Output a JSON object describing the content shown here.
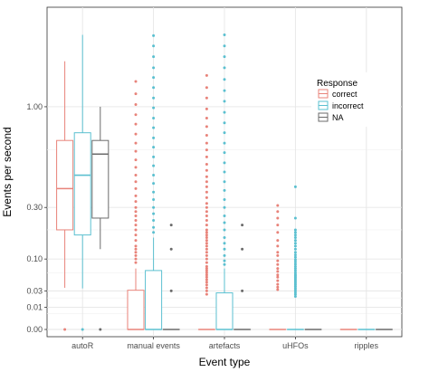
{
  "chart_data": {
    "type": "boxplot",
    "xlabel": "Event type",
    "ylabel": "Events per second",
    "y_scale": "pseudo-log (square-root style)",
    "y_ticks": [
      0.0,
      0.01,
      0.03,
      0.1,
      0.3,
      1.0
    ],
    "y_tick_labels": [
      "0.00",
      "0.01",
      "0.03",
      "0.10",
      "0.30",
      "1.00"
    ],
    "ylim": [
      0,
      2.0
    ],
    "grid": true,
    "categories": [
      "autoR",
      "manual events",
      "artefacts",
      "uHFOs",
      "ripples"
    ],
    "legend": {
      "title": "Response",
      "placement": "right",
      "entries": [
        {
          "key": "correct",
          "label": "correct",
          "color": "#E8837A"
        },
        {
          "key": "incorrect",
          "label": "incorrect",
          "color": "#5BC0D0"
        },
        {
          "key": "NA",
          "label": "NA",
          "color": "#6B6B6B"
        }
      ]
    },
    "series": [
      {
        "name": "correct",
        "color": "#E8837A",
        "boxes": [
          {
            "category": "autoR",
            "lower_whisker": 0.035,
            "q1": 0.2,
            "median": 0.4,
            "q3": 0.72,
            "upper_whisker": 1.45,
            "outliers": [
              0.0
            ]
          },
          {
            "category": "manual events",
            "lower_whisker": 0.0,
            "q1": 0.0,
            "median": 0.0,
            "q3": 0.031,
            "upper_whisker": 0.075,
            "outliers": [
              0.09,
              0.1,
              0.11,
              0.12,
              0.13,
              0.14,
              0.16,
              0.18,
              0.2,
              0.22,
              0.24,
              0.26,
              0.28,
              0.3,
              0.33,
              0.36,
              0.4,
              0.44,
              0.48,
              0.53,
              0.58,
              0.64,
              0.7,
              0.77,
              0.85,
              0.93,
              1.02,
              1.12,
              1.24
            ]
          },
          {
            "category": "artefacts",
            "lower_whisker": 0.0,
            "q1": 0.0,
            "median": 0.0,
            "q3": 0.0,
            "upper_whisker": 0.0,
            "outliers": [
              0.025,
              0.03,
              0.035,
              0.04,
              0.045,
              0.05,
              0.055,
              0.06,
              0.065,
              0.07,
              0.075,
              0.08,
              0.09,
              0.1,
              0.11,
              0.12,
              0.13,
              0.14,
              0.15,
              0.16,
              0.17,
              0.18,
              0.19,
              0.2,
              0.22,
              0.24,
              0.26,
              0.28,
              0.3,
              0.32,
              0.35,
              0.38,
              0.41,
              0.44,
              0.47,
              0.51,
              0.55,
              0.6,
              0.65,
              0.7,
              0.76,
              0.83,
              0.9,
              0.98,
              1.08,
              1.18,
              1.3
            ]
          },
          {
            "category": "uHFOs",
            "lower_whisker": 0.0,
            "q1": 0.0,
            "median": 0.0,
            "q3": 0.0,
            "upper_whisker": 0.0,
            "outliers": [
              0.032,
              0.036,
              0.041,
              0.048,
              0.055,
              0.06,
              0.068,
              0.075,
              0.085,
              0.095,
              0.11,
              0.12,
              0.14,
              0.16,
              0.19,
              0.22,
              0.25,
              0.28,
              0.31
            ]
          },
          {
            "category": "ripples",
            "lower_whisker": 0.0,
            "q1": 0.0,
            "median": 0.0,
            "q3": 0.0,
            "upper_whisker": 0.0,
            "outliers": []
          }
        ]
      },
      {
        "name": "incorrect",
        "color": "#5BC0D0",
        "boxes": [
          {
            "category": "autoR",
            "lower_whisker": 0.034,
            "q1": 0.18,
            "median": 0.48,
            "q3": 0.78,
            "upper_whisker": 1.75,
            "outliers": [
              0.0
            ]
          },
          {
            "category": "manual events",
            "lower_whisker": 0.0,
            "q1": 0.0,
            "median": 0.0,
            "q3": 0.07,
            "upper_whisker": 0.17,
            "outliers": [
              0.19,
              0.21,
              0.24,
              0.27,
              0.3,
              0.34,
              0.38,
              0.43,
              0.48,
              0.54,
              0.6,
              0.67,
              0.74,
              0.82,
              0.9,
              0.99,
              1.08,
              1.18,
              1.28,
              1.38,
              1.5,
              1.62,
              1.74
            ]
          },
          {
            "category": "artefacts",
            "lower_whisker": 0.0,
            "q1": 0.0,
            "median": 0.0,
            "q3": 0.027,
            "upper_whisker": 0.075,
            "outliers": [
              0.085,
              0.095,
              0.11,
              0.13,
              0.15,
              0.17,
              0.2,
              0.23,
              0.26,
              0.3,
              0.34,
              0.39,
              0.44,
              0.5,
              0.56,
              0.63,
              0.7,
              0.78,
              0.86,
              0.95,
              1.05,
              1.15,
              1.26,
              1.38,
              1.5,
              1.62,
              1.75
            ]
          },
          {
            "category": "uHFOs",
            "lower_whisker": 0.0,
            "q1": 0.0,
            "median": 0.0,
            "q3": 0.0,
            "upper_whisker": 0.0,
            "outliers": [
              0.022,
              0.025,
              0.028,
              0.031,
              0.034,
              0.037,
              0.04,
              0.043,
              0.046,
              0.049,
              0.052,
              0.055,
              0.058,
              0.061,
              0.065,
              0.07,
              0.075,
              0.08,
              0.086,
              0.092,
              0.098,
              0.105,
              0.112,
              0.12,
              0.13,
              0.14,
              0.15,
              0.16,
              0.17,
              0.18,
              0.19,
              0.2,
              0.25,
              0.41
            ]
          },
          {
            "category": "ripples",
            "lower_whisker": 0.0,
            "q1": 0.0,
            "median": 0.0,
            "q3": 0.0,
            "upper_whisker": 0.0,
            "outliers": []
          }
        ]
      },
      {
        "name": "NA",
        "color": "#6B6B6B",
        "boxes": [
          {
            "category": "autoR",
            "lower_whisker": 0.13,
            "q1": 0.25,
            "median": 0.62,
            "q3": 0.72,
            "upper_whisker": 1.0,
            "outliers": [
              0.0
            ]
          },
          {
            "category": "manual events",
            "lower_whisker": 0.0,
            "q1": 0.0,
            "median": 0.0,
            "q3": 0.0,
            "upper_whisker": 0.0,
            "outliers": [
              0.03,
              0.13,
              0.22
            ]
          },
          {
            "category": "artefacts",
            "lower_whisker": 0.0,
            "q1": 0.0,
            "median": 0.0,
            "q3": 0.0,
            "upper_whisker": 0.0,
            "outliers": [
              0.03,
              0.13,
              0.22
            ]
          },
          {
            "category": "uHFOs",
            "lower_whisker": 0.0,
            "q1": 0.0,
            "median": 0.0,
            "q3": 0.0,
            "upper_whisker": 0.0,
            "outliers": []
          },
          {
            "category": "ripples",
            "lower_whisker": 0.0,
            "q1": 0.0,
            "median": 0.0,
            "q3": 0.0,
            "upper_whisker": 0.0,
            "outliers": []
          }
        ]
      }
    ]
  }
}
